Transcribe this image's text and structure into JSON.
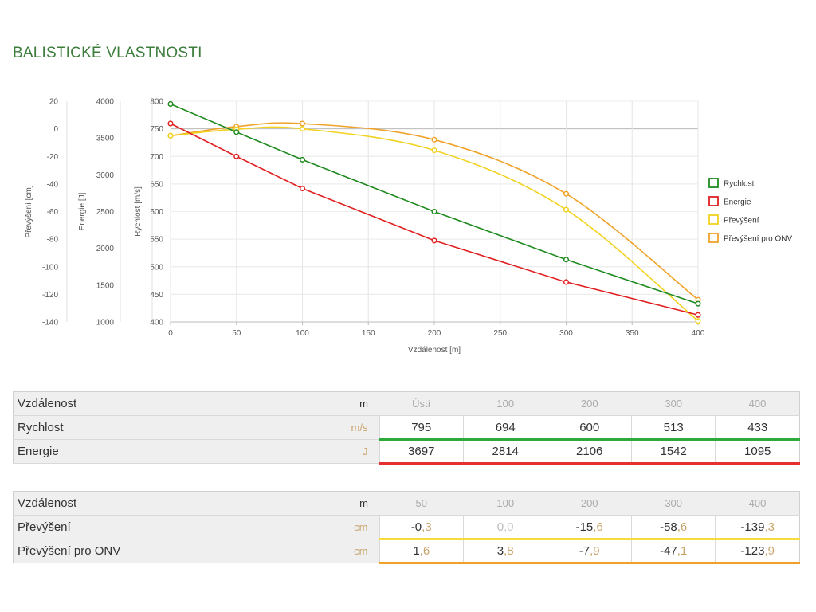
{
  "page": {
    "title": "BALISTICKÉ VLASTNOSTI"
  },
  "chart_data": {
    "type": "line",
    "x": [
      0,
      50,
      100,
      200,
      300,
      400
    ],
    "xlabel": "Vzdálenost [m]",
    "xlim": [
      0,
      400
    ],
    "xticks": [
      0,
      50,
      100,
      150,
      200,
      250,
      300,
      350,
      400
    ],
    "axes": [
      {
        "id": "rychlost",
        "label": "Rychlost [m/s]",
        "lim": [
          400,
          800
        ],
        "ticks": [
          400,
          450,
          500,
          550,
          600,
          650,
          700,
          750,
          800
        ]
      },
      {
        "id": "energie",
        "label": "Energie [J]",
        "lim": [
          1000,
          4000
        ],
        "ticks": [
          1000,
          1500,
          2000,
          2500,
          3000,
          3500,
          4000
        ]
      },
      {
        "id": "prevyseni",
        "label": "Převýšení [cm]",
        "lim": [
          -140,
          20
        ],
        "ticks": [
          -140,
          -120,
          -100,
          -80,
          -60,
          -40,
          -20,
          0,
          20
        ]
      }
    ],
    "series": [
      {
        "name": "Rychlost",
        "axis": "rychlost",
        "color": "#1f8a1f",
        "smooth": false,
        "x": [
          0,
          50,
          100,
          200,
          300,
          400
        ],
        "values": [
          795,
          744,
          694,
          600,
          513,
          433
        ]
      },
      {
        "name": "Energie",
        "axis": "energie",
        "color": "#e02020",
        "smooth": false,
        "x": [
          0,
          50,
          100,
          200,
          300,
          400
        ],
        "values": [
          3697,
          3250,
          2814,
          2106,
          1542,
          1095
        ]
      },
      {
        "name": "Převýšení",
        "axis": "prevyseni",
        "color": "#f2d21e",
        "smooth": true,
        "x": [
          0,
          50,
          100,
          200,
          300,
          400
        ],
        "values": [
          -5,
          -0.3,
          0.0,
          -15.6,
          -58.6,
          -139.3
        ]
      },
      {
        "name": "Převýšení pro ONV",
        "axis": "prevyseni",
        "color": "#f0a228",
        "smooth": true,
        "x": [
          0,
          50,
          100,
          200,
          300,
          400
        ],
        "values": [
          -5,
          1.6,
          3.8,
          -7.9,
          -47.1,
          -123.9
        ]
      }
    ],
    "grid": true,
    "legend": "right"
  },
  "table1": {
    "rows": [
      {
        "label": "Vzdálenost",
        "unit": "m",
        "values": [
          "Ústí",
          "100",
          "200",
          "300",
          "400"
        ]
      },
      {
        "label": "Rychlost",
        "unit": "m/s",
        "values": [
          "795",
          "694",
          "600",
          "513",
          "433"
        ]
      },
      {
        "label": "Energie",
        "unit": "J",
        "values": [
          "3697",
          "2814",
          "2106",
          "1542",
          "1095"
        ]
      }
    ]
  },
  "table2": {
    "rows": [
      {
        "label": "Vzdálenost",
        "unit": "m",
        "values": [
          "50",
          "100",
          "200",
          "300",
          "400"
        ]
      },
      {
        "label": "Převýšení",
        "unit": "cm",
        "ints": [
          "-0",
          "0",
          "-15",
          "-58",
          "-139"
        ],
        "decs": [
          ",3",
          ",0",
          ",6",
          ",6",
          ",3"
        ]
      },
      {
        "label": "Převýšení pro ONV",
        "unit": "cm",
        "ints": [
          "1",
          "3",
          "-7",
          "-47",
          "-123"
        ],
        "decs": [
          ",6",
          ",8",
          ",9",
          ",1",
          ",9"
        ]
      }
    ]
  }
}
